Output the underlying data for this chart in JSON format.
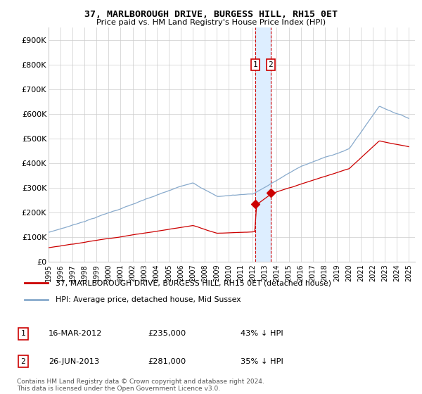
{
  "title": "37, MARLBOROUGH DRIVE, BURGESS HILL, RH15 0ET",
  "subtitle": "Price paid vs. HM Land Registry's House Price Index (HPI)",
  "ylabel_ticks": [
    "£0",
    "£100K",
    "£200K",
    "£300K",
    "£400K",
    "£500K",
    "£600K",
    "£700K",
    "£800K",
    "£900K"
  ],
  "ytick_values": [
    0,
    100000,
    200000,
    300000,
    400000,
    500000,
    600000,
    700000,
    800000,
    900000
  ],
  "ylim": [
    0,
    950000
  ],
  "xlim_start": 1995.0,
  "xlim_end": 2025.5,
  "purchase1_date": 2012.21,
  "purchase1_price": 235000,
  "purchase1_label": "1",
  "purchase2_date": 2013.49,
  "purchase2_price": 281000,
  "purchase2_label": "2",
  "line_color_property": "#cc0000",
  "line_color_hpi": "#88aacc",
  "shade_color": "#ddeeff",
  "grid_color": "#cccccc",
  "legend_label_property": "37, MARLBOROUGH DRIVE, BURGESS HILL, RH15 0ET (detached house)",
  "legend_label_hpi": "HPI: Average price, detached house, Mid Sussex",
  "footer": "Contains HM Land Registry data © Crown copyright and database right 2024.\nThis data is licensed under the Open Government Licence v3.0.",
  "xtick_years": [
    1995,
    1996,
    1997,
    1998,
    1999,
    2000,
    2001,
    2002,
    2003,
    2004,
    2005,
    2006,
    2007,
    2008,
    2009,
    2010,
    2011,
    2012,
    2013,
    2014,
    2015,
    2016,
    2017,
    2018,
    2019,
    2020,
    2021,
    2022,
    2023,
    2024,
    2025
  ],
  "xtick_labels": [
    "1995",
    "1996",
    "1997",
    "1998",
    "1999",
    "2000",
    "2001",
    "2002",
    "2003",
    "2004",
    "2005",
    "2006",
    "2007",
    "2008",
    "2009",
    "2010",
    "2011",
    "2012",
    "2013",
    "2014",
    "2015",
    "2016",
    "2017",
    "2018",
    "2019",
    "2020",
    "2021",
    "2022",
    "2023",
    "2024",
    "2025"
  ]
}
